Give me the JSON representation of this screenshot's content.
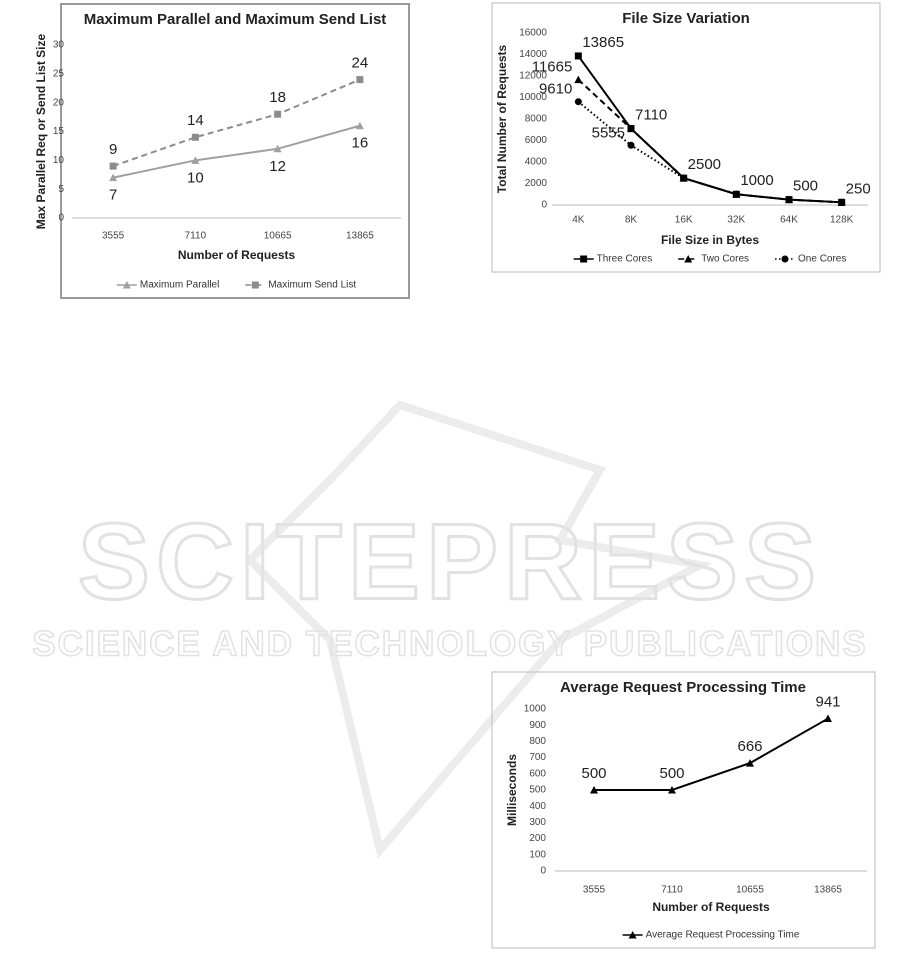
{
  "watermark": {
    "title": "SCITEPRESS",
    "subtitle": "SCIENCE AND TECHNOLOGY PUBLICATIONS"
  },
  "chart_data": [
    {
      "type": "line",
      "title": "Maximum Parallel and Maximum Send List",
      "x_label": "Number of Requests",
      "y_label": "Max Parallel Req or Send List Size",
      "categories": [
        "3555",
        "7110",
        "10665",
        "13865"
      ],
      "ylim": [
        0,
        30
      ],
      "yticks": [
        0,
        5,
        10,
        15,
        20,
        25,
        30
      ],
      "grid": false,
      "legend": "bottom",
      "series": [
        {
          "name": "Maximum Parallel",
          "color": "#a0a0a0",
          "dash": "solid",
          "marker": "triangle",
          "label_position": "below",
          "values": [
            7,
            10,
            12,
            16
          ]
        },
        {
          "name": "Maximum Send List",
          "color": "#8c8c8c",
          "dash": "dashed",
          "marker": "square",
          "label_position": "above",
          "values": [
            9,
            14,
            18,
            24
          ]
        }
      ]
    },
    {
      "type": "line",
      "title": "File Size Variation",
      "x_label": "File Size in Bytes",
      "y_label": "Total Number of Requests",
      "categories": [
        "4K",
        "8K",
        "16K",
        "32K",
        "64K",
        "128K"
      ],
      "ylim": [
        0,
        16000
      ],
      "yticks": [
        0,
        2000,
        4000,
        6000,
        8000,
        10000,
        12000,
        14000,
        16000
      ],
      "grid": false,
      "legend": "bottom",
      "series": [
        {
          "name": "Three Cores",
          "color": "#000000",
          "dash": "solid",
          "marker": "square",
          "label_position": "above-right",
          "values": [
            13865,
            7110,
            2500,
            1000,
            500,
            250
          ],
          "value_labels": [
            "13865",
            "7110",
            "2500",
            "1000",
            "500",
            "250"
          ]
        },
        {
          "name": "Two Cores",
          "color": "#000000",
          "dash": "dashed",
          "marker": "triangle",
          "label_position": "left",
          "values": [
            11665,
            7110,
            2500,
            1000,
            500,
            250
          ],
          "value_labels": [
            "11665",
            null,
            null,
            null,
            null,
            null
          ]
        },
        {
          "name": "One Cores",
          "color": "#000000",
          "dash": "dotted",
          "marker": "circle",
          "label_position": "left",
          "values": [
            9610,
            5555,
            2500,
            1000,
            500,
            250
          ],
          "value_labels": [
            "9610",
            "5555",
            null,
            null,
            null,
            null
          ]
        }
      ]
    },
    {
      "type": "line",
      "title": "Average Request Processing Time",
      "x_label": "Number of Requests",
      "y_label": "Milliseconds",
      "categories": [
        "3555",
        "7110",
        "10655",
        "13865"
      ],
      "ylim": [
        0,
        1000
      ],
      "yticks": [
        0,
        100,
        200,
        300,
        400,
        500,
        600,
        700,
        800,
        900,
        1000
      ],
      "grid": false,
      "legend": "bottom",
      "series": [
        {
          "name": "Average Request Processing Time",
          "color": "#000000",
          "dash": "solid",
          "marker": "triangle",
          "label_position": "above",
          "values": [
            500,
            500,
            666,
            941
          ]
        }
      ]
    }
  ]
}
